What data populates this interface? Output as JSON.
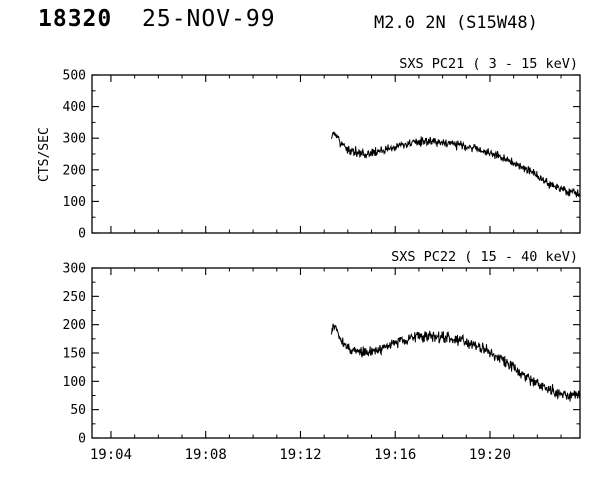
{
  "header": {
    "event_id": "18320",
    "date": "25-NOV-99",
    "flare_class": "M2.0",
    "optical_class": "2N",
    "location": "(S15W48)"
  },
  "colors": {
    "line": "#000000",
    "text": "#000000",
    "background": "#ffffff"
  },
  "x_axis": {
    "range_minutes_after_1900": [
      3.2,
      23.8
    ],
    "tick_values": [
      4,
      8,
      12,
      16,
      20
    ],
    "tick_labels": [
      "19:04",
      "19:08",
      "19:12",
      "19:16",
      "19:20"
    ],
    "minor_step": 1
  },
  "chart_data": [
    {
      "type": "line",
      "title": "SXS PC21  (  3 - 15 keV)",
      "xlabel": "",
      "ylabel": "CTS/SEC",
      "ylim": [
        0,
        500
      ],
      "yticks": [
        0,
        100,
        200,
        300,
        400,
        500
      ],
      "grid": false,
      "legend": "none",
      "data_start_minute": 13.3,
      "data_end_minute": 23.8,
      "trend": {
        "x": [
          13.3,
          13.45,
          13.7,
          14.0,
          14.4,
          14.8,
          15.3,
          15.8,
          16.3,
          16.8,
          17.3,
          17.8,
          18.3,
          18.8,
          19.3,
          19.8,
          20.3,
          20.8,
          21.3,
          21.8,
          22.3,
          22.8,
          23.3,
          23.8
        ],
        "y": [
          305,
          318,
          285,
          262,
          252,
          250,
          258,
          268,
          278,
          285,
          290,
          288,
          283,
          278,
          268,
          258,
          244,
          228,
          210,
          190,
          165,
          145,
          132,
          125
        ]
      },
      "noise_amplitude": 16
    },
    {
      "type": "line",
      "title": "SXS PC22  ( 15 - 40 keV)",
      "xlabel": "",
      "ylabel": "",
      "ylim": [
        0,
        300
      ],
      "yticks": [
        0,
        50,
        100,
        150,
        200,
        250,
        300
      ],
      "grid": false,
      "legend": "none",
      "data_start_minute": 13.3,
      "data_end_minute": 23.8,
      "trend": {
        "x": [
          13.3,
          13.45,
          13.7,
          14.0,
          14.4,
          14.8,
          15.3,
          15.8,
          16.3,
          16.8,
          17.3,
          17.8,
          18.3,
          18.8,
          19.3,
          19.8,
          20.3,
          20.8,
          21.3,
          21.8,
          22.3,
          22.8,
          23.3,
          23.8
        ],
        "y": [
          188,
          200,
          172,
          158,
          152,
          150,
          156,
          164,
          172,
          177,
          180,
          179,
          176,
          172,
          165,
          156,
          144,
          130,
          115,
          100,
          88,
          78,
          74,
          78
        ]
      },
      "noise_amplitude": 12
    }
  ]
}
